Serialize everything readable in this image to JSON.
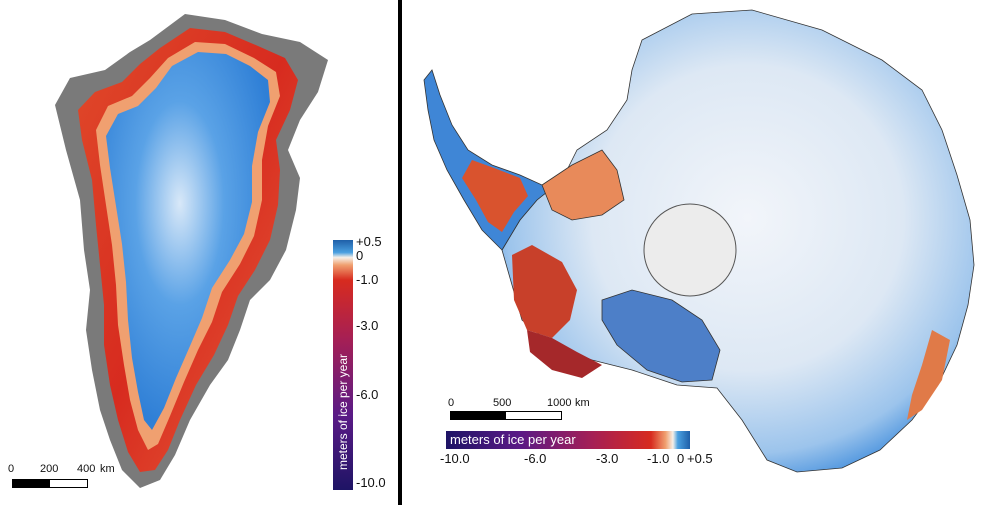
{
  "greenland": {
    "colorbar": {
      "title": "meters of ice per year",
      "ticks": [
        "+0.5",
        "0",
        "-1.0",
        "-3.0",
        "-6.0",
        "-10.0"
      ]
    },
    "scalebar": {
      "labels": [
        "0",
        "200",
        "400"
      ],
      "unit": "km"
    }
  },
  "antarctica": {
    "colorbar": {
      "title": "meters of ice per year",
      "ticks": [
        "-10.0",
        "-6.0",
        "-3.0",
        "-1.0",
        "0",
        "+0.5"
      ]
    },
    "scalebar": {
      "labels": [
        "0",
        "500",
        "1000"
      ],
      "unit": "km"
    }
  },
  "colors": {
    "gain": "#2f86d6",
    "zero": "#f6f0e8",
    "loss_light": "#f0a070",
    "loss": "#d72b1f",
    "loss_heavy": "#6a1a86",
    "loss_extreme": "#1e1465",
    "ocean": "#ffffff",
    "land_relief": "#6b6b6b"
  }
}
